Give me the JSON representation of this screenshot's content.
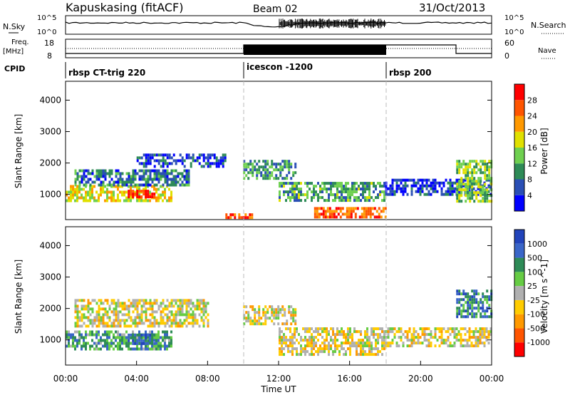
{
  "header": {
    "station": "Kapuskasing (fitACF)",
    "beam": "Beam 02",
    "date": "31/Oct/2013"
  },
  "params_panel": {
    "nsky_label": "N.Sky",
    "nsky_ticks": [
      "10^5",
      "10^0"
    ],
    "nsearch_label": "N.Search",
    "nsearch_ticks": [
      "10^5",
      "10^0"
    ],
    "freq_label": "Freq.",
    "freq_unit": "[MHz]",
    "freq_ticks": [
      "18",
      "8"
    ],
    "nave_label": "Nave",
    "nave_ticks": [
      "60",
      "0"
    ],
    "cpid_label": "CPID",
    "cpid_segments": [
      {
        "name": "rbsp CT-trig 220",
        "start_hour": 0,
        "end_hour": 10
      },
      {
        "name": "icescon -1200",
        "start_hour": 10,
        "end_hour": 18
      },
      {
        "name": "rbsp 200",
        "start_hour": 18,
        "end_hour": 24
      }
    ]
  },
  "x_axis": {
    "label": "Time UT",
    "ticks": [
      "00:00",
      "04:00",
      "08:00",
      "12:00",
      "16:00",
      "20:00",
      "00:00"
    ]
  },
  "colors": {
    "power": [
      "#0000ff",
      "#2a4fb5",
      "#2e8b57",
      "#6fd050",
      "#e0e000",
      "#ff9900",
      "#ff5500",
      "#ff0000"
    ],
    "velocity": [
      "#2244bb",
      "#3a66c8",
      "#2e8b57",
      "#66cc44",
      "#b0b0b0",
      "#ffcc00",
      "#ff9900",
      "#ff5500",
      "#ff0000"
    ]
  },
  "chart_data": [
    {
      "type": "heatmap",
      "xlabel": "",
      "ylabel": "Slant Range [km]",
      "y_ticks": [
        "1000",
        "2000",
        "3000",
        "4000"
      ],
      "xlim": [
        0,
        24
      ],
      "ylim": [
        200,
        4600
      ],
      "colorbar_label": "Power [dB]",
      "colorbar_ticks": [
        "4",
        "8",
        "12",
        "16",
        "20",
        "24",
        "28"
      ],
      "bands": [
        {
          "t0": 0.0,
          "t1": 6.0,
          "r0": 800,
          "r1": 1300,
          "level": 0.55
        },
        {
          "t0": 0.5,
          "t1": 7.0,
          "r0": 1300,
          "r1": 1800,
          "level": 0.25
        },
        {
          "t0": 4.0,
          "t1": 9.0,
          "r0": 1900,
          "r1": 2300,
          "level": 0.15
        },
        {
          "t0": 3.5,
          "t1": 5.0,
          "r0": 900,
          "r1": 1150,
          "level": 0.9
        },
        {
          "t0": 9.0,
          "t1": 10.5,
          "r0": 250,
          "r1": 400,
          "level": 0.85
        },
        {
          "t0": 10.0,
          "t1": 13.0,
          "r0": 1500,
          "r1": 2100,
          "level": 0.3
        },
        {
          "t0": 12.0,
          "t1": 18.0,
          "r0": 800,
          "r1": 1400,
          "level": 0.35
        },
        {
          "t0": 14.0,
          "t1": 18.0,
          "r0": 300,
          "r1": 600,
          "level": 0.8
        },
        {
          "t0": 18.0,
          "t1": 24.0,
          "r0": 1000,
          "r1": 1500,
          "level": 0.15
        },
        {
          "t0": 22.0,
          "t1": 24.0,
          "r0": 800,
          "r1": 2100,
          "level": 0.45
        }
      ]
    },
    {
      "type": "heatmap",
      "xlabel": "Time UT",
      "ylabel": "Slant Range [km]",
      "y_ticks": [
        "1000",
        "2000",
        "3000",
        "4000"
      ],
      "xlim": [
        0,
        24
      ],
      "ylim": [
        200,
        4600
      ],
      "colorbar_label": "Velocity [m s^-1]",
      "colorbar_ticks": [
        "1000",
        "500",
        "100",
        "25",
        "-25",
        "-100",
        "-500",
        "-1000"
      ],
      "bands": [
        {
          "t0": 0.0,
          "t1": 6.0,
          "r0": 750,
          "r1": 1300,
          "level": 0.7
        },
        {
          "t0": 3.5,
          "t1": 5.0,
          "r0": 850,
          "r1": 1200,
          "level": 0.85
        },
        {
          "t0": 0.5,
          "t1": 8.0,
          "r0": 1400,
          "r1": 2300,
          "level": 0.45
        },
        {
          "t0": 10.0,
          "t1": 13.0,
          "r0": 1500,
          "r1": 2100,
          "level": 0.45
        },
        {
          "t0": 12.0,
          "t1": 18.0,
          "r0": 500,
          "r1": 1400,
          "level": 0.45
        },
        {
          "t0": 18.0,
          "t1": 24.0,
          "r0": 800,
          "r1": 1400,
          "level": 0.45
        },
        {
          "t0": 22.0,
          "t1": 24.0,
          "r0": 1700,
          "r1": 2600,
          "level": 0.78
        }
      ]
    }
  ]
}
